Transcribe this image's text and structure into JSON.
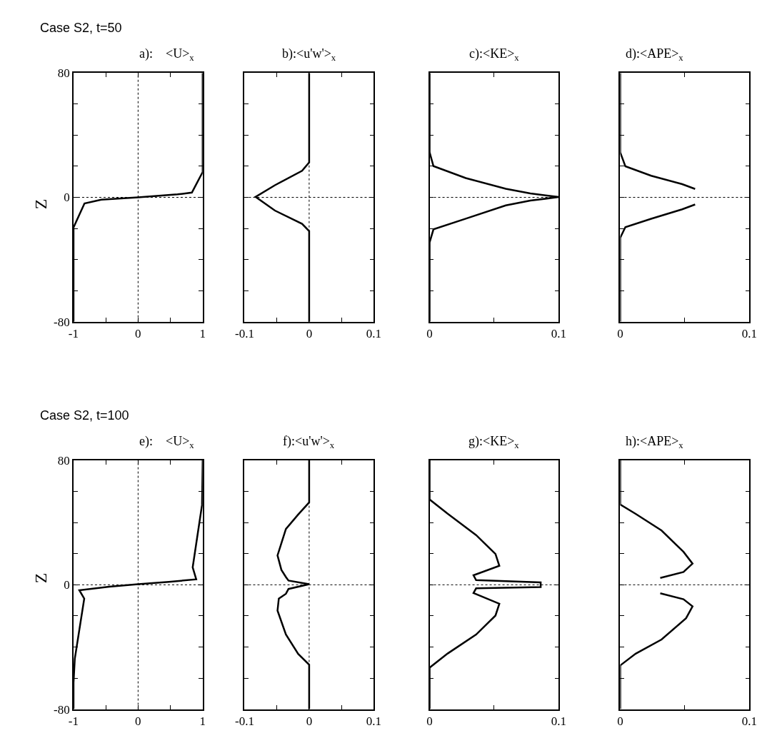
{
  "chart_data": [
    {
      "type": "line",
      "title": "a):    <U>$_{x}$",
      "ylabel": "Z",
      "annotations": [
        "Case S2, t=50"
      ],
      "xlim": [
        -1,
        1
      ],
      "xticks": [
        -1,
        {
          "value": -0.5,
          "label": null
        },
        0,
        {
          "value": 0.5,
          "label": null
        },
        1
      ],
      "ylim": [
        -80,
        80
      ],
      "yticks": [
        -80,
        {
          "value": -60,
          "label": null
        },
        {
          "value": -40,
          "label": null
        },
        {
          "value": -20,
          "label": null
        },
        0,
        {
          "value": 20,
          "label": null
        },
        {
          "value": 40,
          "label": null
        },
        {
          "value": 60,
          "label": null
        },
        80
      ],
      "line_style": "solid",
      "ref_lines": [
        {
          "axis": "x",
          "value": 0,
          "line_style": "dotted"
        },
        {
          "axis": "y",
          "value": 0,
          "line_style": "dotted"
        }
      ],
      "series": [
        {
          "color": "#000000",
          "x": [
            1,
            1,
            0.833,
            0.61,
            0,
            -0.57,
            -0.83,
            -1,
            -1
          ],
          "values": [
            80,
            16.3,
            3.1,
            1.9,
            0,
            -1.5,
            -3.9,
            -19.4,
            -80
          ]
        }
      ]
    },
    {
      "type": "line",
      "title": "b):<u'w'>$_{x}$",
      "tick_labels": "x",
      "xlim": [
        -0.1,
        0.1
      ],
      "xticks": [
        -0.1,
        {
          "value": -0.05,
          "label": null
        },
        0,
        {
          "value": 0.05,
          "label": null
        },
        0.1
      ],
      "ylim": [
        -80,
        80
      ],
      "yticks": [
        {
          "value": -60,
          "label": null
        },
        {
          "value": -40,
          "label": null
        },
        {
          "value": -20,
          "label": null
        },
        {
          "value": 0,
          "label": null
        },
        {
          "value": 20,
          "label": null
        },
        {
          "value": 40,
          "label": null
        },
        {
          "value": 60,
          "label": null
        }
      ],
      "line_style": "solid",
      "ref_lines": [
        {
          "axis": "x",
          "value": 0,
          "line_style": "dotted"
        },
        {
          "axis": "y",
          "value": 0,
          "line_style": "dotted"
        }
      ],
      "series": [
        {
          "color": "#000000",
          "x": [
            0,
            0,
            -0.011,
            -0.053,
            -0.083,
            -0.053,
            -0.011,
            0,
            0
          ],
          "values": [
            80,
            22.5,
            17.1,
            7.8,
            0.3,
            -8.5,
            -17,
            -21.7,
            -80
          ]
        }
      ]
    },
    {
      "type": "line",
      "title": "c):<KE>$_{x}$",
      "tick_labels": "x",
      "xlim": [
        0,
        0.1
      ],
      "xticks": [
        0,
        {
          "value": 0.05,
          "label": null
        },
        0.1
      ],
      "ylim": [
        -80,
        80
      ],
      "yticks": [
        {
          "value": -60,
          "label": null
        },
        {
          "value": -40,
          "label": null
        },
        {
          "value": -20,
          "label": null
        },
        {
          "value": 0,
          "label": null
        },
        {
          "value": 20,
          "label": null
        },
        {
          "value": 40,
          "label": null
        },
        {
          "value": 60,
          "label": null
        }
      ],
      "line_style": "solid",
      "ref_lines": [
        {
          "axis": "y",
          "value": 0,
          "line_style": "dotted"
        }
      ],
      "series": [
        {
          "color": "#000000",
          "x": [
            0,
            0,
            0.003,
            0.028,
            0.059,
            0.078,
            0.1,
            0.078,
            0.059,
            0.028,
            0.003,
            0,
            0
          ],
          "values": [
            80,
            29,
            20.1,
            12.4,
            5.5,
            2.5,
            0.2,
            -2.1,
            -5.2,
            -13.7,
            -20.6,
            -29,
            -80
          ]
        }
      ]
    },
    {
      "type": "line",
      "title": "d):<APE>$_{x}$",
      "tick_labels": "x",
      "xlim": [
        0,
        0.1
      ],
      "xticks": [
        0,
        {
          "value": 0.05,
          "label": null
        },
        0.1
      ],
      "ylim": [
        -80,
        80
      ],
      "yticks": [
        {
          "value": -60,
          "label": null
        },
        {
          "value": -40,
          "label": null
        },
        {
          "value": -20,
          "label": null
        },
        {
          "value": 0,
          "label": null
        },
        {
          "value": 20,
          "label": null
        },
        {
          "value": 40,
          "label": null
        },
        {
          "value": 60,
          "label": null
        }
      ],
      "line_style": "solid",
      "ref_lines": [
        {
          "axis": "y",
          "value": 0,
          "line_style": "dotted"
        }
      ],
      "series": [
        {
          "color": "#000000",
          "x": [
            0,
            0,
            0.004,
            0.024,
            0.048,
            0.058,
            null,
            0.058,
            0.048,
            0.024,
            0.004,
            0,
            0
          ],
          "values": [
            80,
            29,
            20,
            13.9,
            8.5,
            5.4,
            null,
            -4.6,
            -7.7,
            -13.8,
            -19.2,
            -26,
            -80
          ]
        }
      ]
    },
    {
      "type": "line",
      "title": "e):    <U>$_{x}$",
      "ylabel": "Z",
      "annotations": [
        "Case S2, t=100"
      ],
      "xlim": [
        -1,
        1
      ],
      "xticks": [
        -1,
        {
          "value": -0.5,
          "label": null
        },
        0,
        {
          "value": 0.5,
          "label": null
        },
        1
      ],
      "ylim": [
        -80,
        80
      ],
      "yticks": [
        -80,
        {
          "value": -60,
          "label": null
        },
        {
          "value": -40,
          "label": null
        },
        {
          "value": -20,
          "label": null
        },
        0,
        {
          "value": 20,
          "label": null
        },
        {
          "value": 40,
          "label": null
        },
        {
          "value": 60,
          "label": null
        },
        80
      ],
      "line_style": "solid",
      "ref_lines": [
        {
          "axis": "x",
          "value": 0,
          "line_style": "dotted"
        },
        {
          "axis": "y",
          "value": 0,
          "line_style": "dotted"
        }
      ],
      "series": [
        {
          "color": "#000000",
          "x": [
            1,
            0.99,
            0.845,
            0.9,
            0.476,
            0,
            -0.446,
            -0.91,
            -0.834,
            -0.98,
            -1,
            -1
          ],
          "values": [
            80,
            51.4,
            11.2,
            3.5,
            1.9,
            0.4,
            -1.2,
            -3.5,
            -8.9,
            -47.5,
            -63,
            -80
          ]
        }
      ]
    },
    {
      "type": "line",
      "title": "f):<u'w'>$_{x}$",
      "tick_labels": "x",
      "xlim": [
        -0.1,
        0.1
      ],
      "xticks": [
        -0.1,
        {
          "value": -0.05,
          "label": null
        },
        0,
        {
          "value": 0.05,
          "label": null
        },
        0.1
      ],
      "ylim": [
        -80,
        80
      ],
      "yticks": [
        {
          "value": -60,
          "label": null
        },
        {
          "value": -40,
          "label": null
        },
        {
          "value": -20,
          "label": null
        },
        {
          "value": 0,
          "label": null
        },
        {
          "value": 20,
          "label": null
        },
        {
          "value": 40,
          "label": null
        },
        {
          "value": 60,
          "label": null
        }
      ],
      "line_style": "solid",
      "ref_lines": [
        {
          "axis": "x",
          "value": 0,
          "line_style": "dotted"
        },
        {
          "axis": "y",
          "value": 0,
          "line_style": "dotted"
        }
      ],
      "series": [
        {
          "color": "#000000",
          "x": [
            0,
            0,
            -0.017,
            -0.036,
            -0.049,
            -0.043,
            -0.036,
            -0.032,
            0,
            -0.032,
            -0.036,
            -0.047,
            -0.049,
            -0.036,
            -0.017,
            0,
            0
          ],
          "values": [
            80,
            53,
            45.2,
            35.9,
            18.9,
            9.6,
            5,
            2.7,
            0.4,
            -2.7,
            -5.8,
            -8.9,
            -16.6,
            -32,
            -44.5,
            -51.4,
            -80
          ]
        }
      ]
    },
    {
      "type": "line",
      "title": "g):<KE>$_{x}$",
      "tick_labels": "x",
      "xlim": [
        0,
        0.1
      ],
      "xticks": [
        0,
        {
          "value": 0.05,
          "label": null
        },
        0.1
      ],
      "ylim": [
        -80,
        80
      ],
      "yticks": [
        {
          "value": -60,
          "label": null
        },
        {
          "value": -40,
          "label": null
        },
        {
          "value": -20,
          "label": null
        },
        {
          "value": 0,
          "label": null
        },
        {
          "value": 20,
          "label": null
        },
        {
          "value": 40,
          "label": null
        },
        {
          "value": 60,
          "label": null
        }
      ],
      "line_style": "solid",
      "ref_lines": [
        {
          "axis": "y",
          "value": 0,
          "line_style": "dotted"
        }
      ],
      "series": [
        {
          "color": "#000000",
          "x": [
            0,
            0,
            0.014,
            0.036,
            0.051,
            0.054,
            0.034,
            0.036,
            0.086,
            0.086,
            0.036,
            0.034,
            0.054,
            0.051,
            0.036,
            0.014,
            0,
            0
          ],
          "values": [
            80,
            54.9,
            45.7,
            32,
            19.8,
            12.2,
            6.1,
            3,
            1.5,
            -1.5,
            -2.3,
            -5.3,
            -12.2,
            -19.8,
            -32,
            -44.2,
            -53.3,
            -80
          ]
        }
      ]
    },
    {
      "type": "line",
      "title": "h):<APE>$_{x}$",
      "tick_labels": "x",
      "xlim": [
        0,
        0.1
      ],
      "xticks": [
        0,
        {
          "value": 0.05,
          "label": null
        },
        0.1
      ],
      "ylim": [
        -80,
        80
      ],
      "yticks": [
        {
          "value": -60,
          "label": null
        },
        {
          "value": -40,
          "label": null
        },
        {
          "value": -20,
          "label": null
        },
        {
          "value": 0,
          "label": null
        },
        {
          "value": 20,
          "label": null
        },
        {
          "value": 40,
          "label": null
        },
        {
          "value": 60,
          "label": null
        }
      ],
      "line_style": "solid",
      "ref_lines": [
        {
          "axis": "y",
          "value": 0,
          "line_style": "dotted"
        }
      ],
      "series": [
        {
          "color": "#000000",
          "x": [
            0,
            0,
            0.012,
            0.032,
            0.049,
            0.056,
            0.049,
            0.031,
            null,
            0.031,
            0.049,
            0.056,
            0.051,
            0.032,
            0.012,
            0,
            0
          ],
          "values": [
            80,
            51.7,
            45.6,
            34.9,
            21.2,
            13.6,
            8.2,
            4.4,
            null,
            -5.5,
            -9.3,
            -13.9,
            -21.5,
            -35.2,
            -44.3,
            -51.9,
            -80
          ]
        }
      ]
    }
  ]
}
